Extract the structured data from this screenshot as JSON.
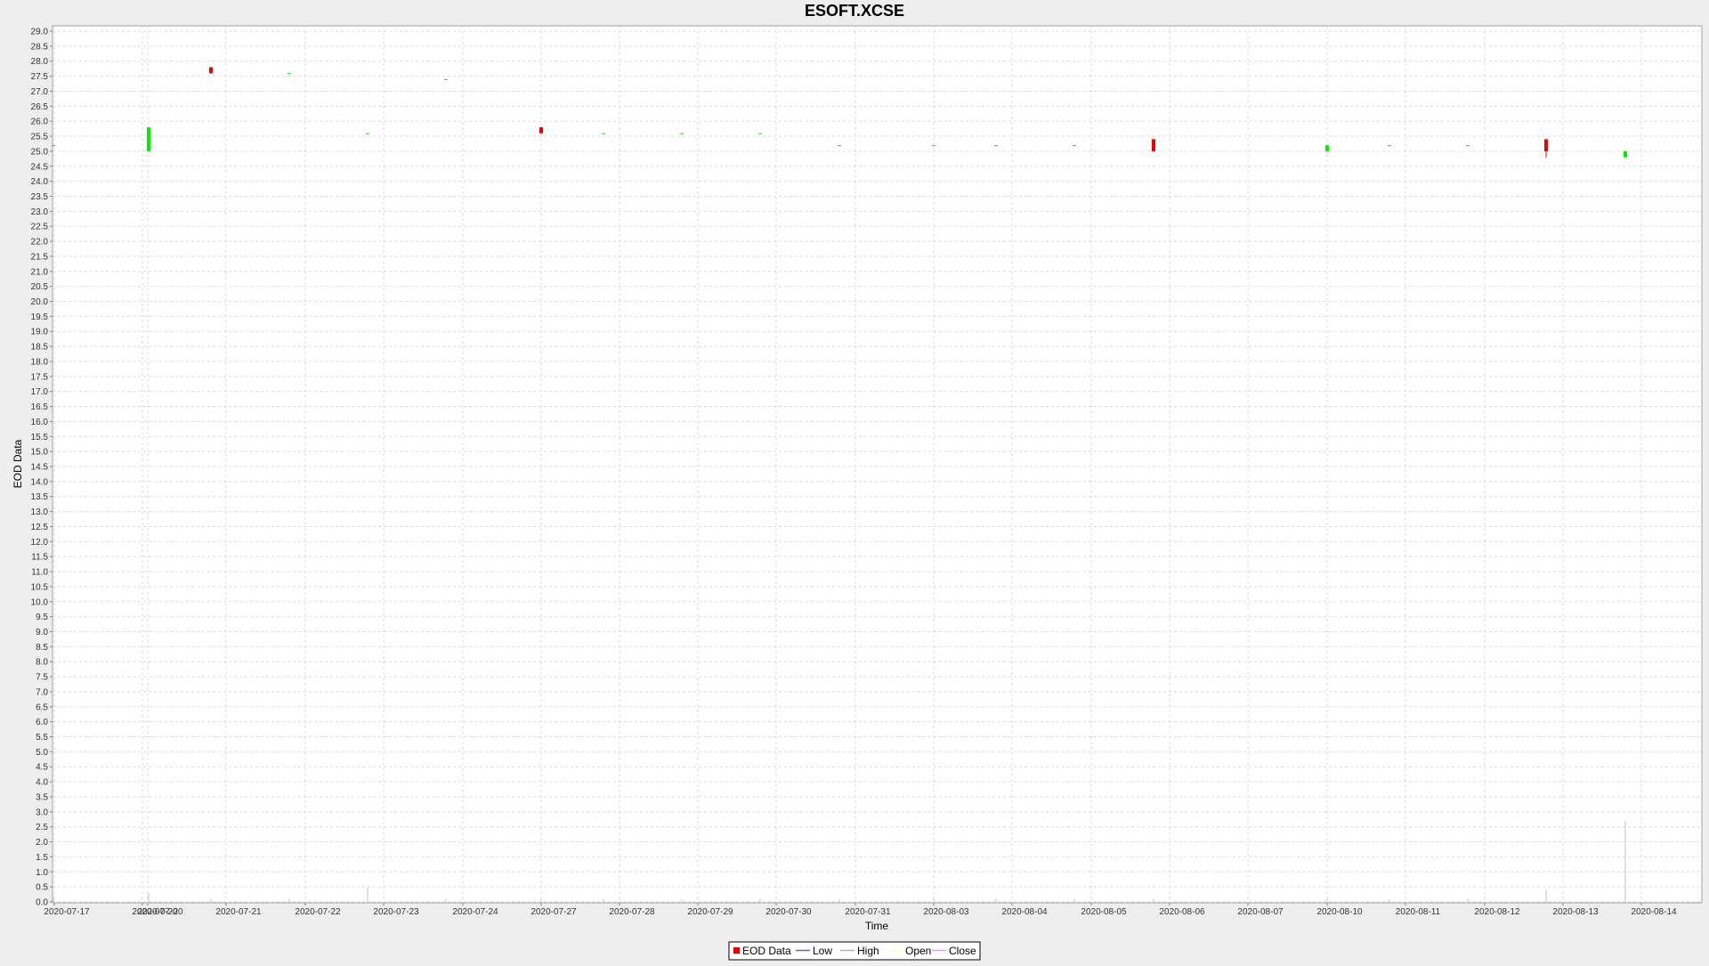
{
  "chart_data": {
    "type": "candlestick",
    "title": "ESOFT.XCSE",
    "xlabel": "Time",
    "ylabel": "EOD Data",
    "ylim": [
      0,
      29
    ],
    "y_tick_step": 0.5,
    "x_ticks": [
      "2020-07-17",
      "2020-07-20",
      "2020-07-20",
      "2020-07-21",
      "2020-07-22",
      "2020-07-23",
      "2020-07-24",
      "2020-07-27",
      "2020-07-28",
      "2020-07-29",
      "2020-07-30",
      "2020-07-31",
      "2020-08-03",
      "2020-08-04",
      "2020-08-05",
      "2020-08-06",
      "2020-08-07",
      "2020-08-10",
      "2020-08-11",
      "2020-08-12",
      "2020-08-13",
      "2020-08-14"
    ],
    "grid": true,
    "legend_position": "bottom-center",
    "legend": [
      "EOD Data",
      "Low",
      "High",
      "Open",
      "Close"
    ],
    "colors": {
      "up": "#00ee00",
      "down": "#ee0000",
      "volume": "#c0c0c0",
      "plot_background": "#ffffff",
      "grid": "#d9d9d9",
      "legend_low": "#6a5acd",
      "legend_high": "#7fd47f",
      "legend_open": "#ffffaa",
      "legend_close": "#ff88ff"
    },
    "candles": [
      {
        "date": "2020-07-17",
        "open": 25.2,
        "high": 25.2,
        "low": 25.2,
        "close": 25.2,
        "volume": 0.1
      },
      {
        "date": "2020-07-20",
        "open": 25.0,
        "high": 25.8,
        "low": 25.0,
        "close": 25.8,
        "volume": 0.3
      },
      {
        "date": "2020-07-21",
        "open": 27.8,
        "high": 27.8,
        "low": 27.6,
        "close": 27.6,
        "volume": 0.1
      },
      {
        "date": "2020-07-22",
        "open": 27.6,
        "high": 27.6,
        "low": 27.6,
        "close": 27.6,
        "volume": 0.1
      },
      {
        "date": "2020-07-23",
        "open": 25.6,
        "high": 25.6,
        "low": 25.6,
        "close": 25.6,
        "volume": 0.5
      },
      {
        "date": "2020-07-24",
        "open": 27.4,
        "high": 27.4,
        "low": 27.4,
        "close": 27.4,
        "volume": 0.1
      },
      {
        "date": "2020-07-27",
        "open": 25.8,
        "high": 25.8,
        "low": 25.6,
        "close": 25.6,
        "volume": 0.1
      },
      {
        "date": "2020-07-28",
        "open": 25.6,
        "high": 25.6,
        "low": 25.6,
        "close": 25.6,
        "volume": 0.1
      },
      {
        "date": "2020-07-29",
        "open": 25.6,
        "high": 25.6,
        "low": 25.6,
        "close": 25.6,
        "volume": 0.1
      },
      {
        "date": "2020-07-30",
        "open": 25.6,
        "high": 25.6,
        "low": 25.6,
        "close": 25.6,
        "volume": 0.1
      },
      {
        "date": "2020-07-31",
        "open": 25.2,
        "high": 25.2,
        "low": 25.2,
        "close": 25.2,
        "volume": 0.1
      },
      {
        "date": "2020-08-03",
        "open": 25.2,
        "high": 25.2,
        "low": 25.2,
        "close": 25.2,
        "volume": 0.1
      },
      {
        "date": "2020-08-04",
        "open": 25.2,
        "high": 25.2,
        "low": 25.2,
        "close": 25.2,
        "volume": 0.1
      },
      {
        "date": "2020-08-05",
        "open": 25.2,
        "high": 25.2,
        "low": 25.2,
        "close": 25.2,
        "volume": 0.1
      },
      {
        "date": "2020-08-06",
        "open": 25.4,
        "high": 25.4,
        "low": 25.0,
        "close": 25.0,
        "volume": 0.1
      },
      {
        "date": "2020-08-10",
        "open": 25.0,
        "high": 25.2,
        "low": 25.0,
        "close": 25.2,
        "volume": 0.1
      },
      {
        "date": "2020-08-11",
        "open": 25.2,
        "high": 25.2,
        "low": 25.2,
        "close": 25.2,
        "volume": 0.1
      },
      {
        "date": "2020-08-12",
        "open": 25.2,
        "high": 25.2,
        "low": 25.2,
        "close": 25.2,
        "volume": 0.1
      },
      {
        "date": "2020-08-13",
        "open": 25.4,
        "high": 25.4,
        "low": 24.8,
        "close": 25.0,
        "volume": 0.4
      },
      {
        "date": "2020-08-14",
        "open": 24.8,
        "high": 25.0,
        "low": 24.8,
        "close": 25.0,
        "volume": 2.7
      }
    ]
  }
}
